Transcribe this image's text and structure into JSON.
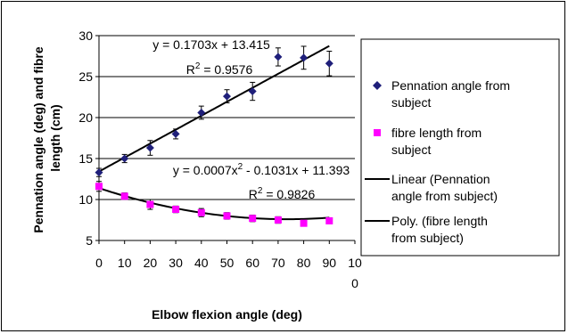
{
  "chart_data": {
    "type": "scatter",
    "xlabel": "Elbow flexion angle (deg)",
    "ylabel_lines": [
      "Pennation angle (deg) and fibre",
      "length (cm)"
    ],
    "xlim": [
      0,
      100
    ],
    "ylim": [
      5,
      30
    ],
    "x_ticks": [
      0,
      10,
      20,
      30,
      40,
      50,
      60,
      70,
      80,
      90
    ],
    "x_tick_last": {
      "line1": "10",
      "line2": "0"
    },
    "y_ticks": [
      5,
      10,
      15,
      20,
      25,
      30
    ],
    "grid": "horizontal",
    "legend_position": "right",
    "series": [
      {
        "name_lines": [
          "Pennation angle from",
          "subject"
        ],
        "marker": "diamond",
        "color": "#1f1f7a",
        "x": [
          0,
          10,
          20,
          30,
          40,
          50,
          60,
          70,
          80,
          90
        ],
        "y": [
          13.3,
          15.0,
          16.3,
          18.0,
          20.6,
          22.6,
          23.2,
          27.4,
          27.3,
          26.6
        ],
        "err": [
          0.5,
          0.5,
          0.9,
          0.6,
          0.8,
          0.8,
          1.1,
          1.1,
          1.4,
          1.5
        ]
      },
      {
        "name_lines": [
          "fibre length from",
          "subject"
        ],
        "marker": "square",
        "color": "#ff00ff",
        "x": [
          0,
          10,
          20,
          30,
          40,
          50,
          60,
          70,
          80,
          90
        ],
        "y": [
          11.6,
          10.4,
          9.4,
          8.8,
          8.4,
          8.0,
          7.7,
          7.5,
          7.1,
          7.4
        ],
        "err": [
          0.6,
          0.4,
          0.6,
          0.4,
          0.5,
          0.4,
          0.4,
          0.4,
          0.3,
          0.3
        ]
      }
    ],
    "trendlines": [
      {
        "name_lines": [
          "Linear (Pennation",
          "angle from subject)"
        ],
        "kind": "linear",
        "coefficients": [
          13.415,
          0.1703
        ],
        "equation": "y = 0.1703x + 13.415",
        "r2_value": "= 0.9576",
        "color": "#000000"
      },
      {
        "name_lines": [
          "Poly. (fibre length",
          "from subject)"
        ],
        "kind": "poly2",
        "coefficients": [
          11.393,
          -0.1031,
          0.0007
        ],
        "equation_parts": [
          "y = 0.0007x",
          "2",
          " - 0.1031x + 11.393"
        ],
        "r2_value": "= 0.9826",
        "color": "#000000"
      }
    ]
  }
}
